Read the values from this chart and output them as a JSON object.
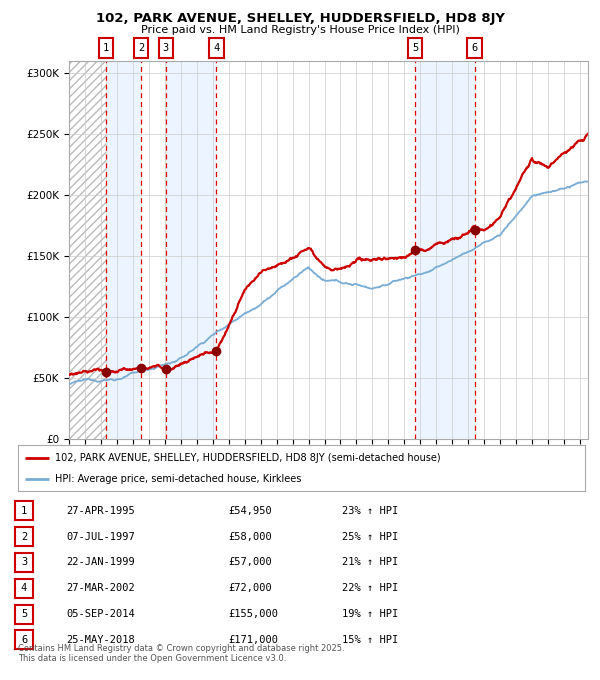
{
  "title": "102, PARK AVENUE, SHELLEY, HUDDERSFIELD, HD8 8JY",
  "subtitle": "Price paid vs. HM Land Registry's House Price Index (HPI)",
  "sales": [
    {
      "num": 1,
      "date_str": "27-APR-1995",
      "year": 1995.32,
      "price": 54950,
      "pct": "23%",
      "dir": "↑"
    },
    {
      "num": 2,
      "date_str": "07-JUL-1997",
      "year": 1997.52,
      "price": 58000,
      "pct": "25%",
      "dir": "↑"
    },
    {
      "num": 3,
      "date_str": "22-JAN-1999",
      "year": 1999.06,
      "price": 57000,
      "pct": "21%",
      "dir": "↑"
    },
    {
      "num": 4,
      "date_str": "27-MAR-2002",
      "year": 2002.23,
      "price": 72000,
      "pct": "22%",
      "dir": "↑"
    },
    {
      "num": 5,
      "date_str": "05-SEP-2014",
      "year": 2014.68,
      "price": 155000,
      "pct": "19%",
      "dir": "↑"
    },
    {
      "num": 6,
      "date_str": "25-MAY-2018",
      "year": 2018.4,
      "price": 171000,
      "pct": "15%",
      "dir": "↑"
    }
  ],
  "legend_red": "102, PARK AVENUE, SHELLEY, HUDDERSFIELD, HD8 8JY (semi-detached house)",
  "legend_blue": "HPI: Average price, semi-detached house, Kirklees",
  "footer": "Contains HM Land Registry data © Crown copyright and database right 2025.\nThis data is licensed under the Open Government Licence v3.0.",
  "red_color": "#cc0000",
  "blue_color": "#7aadd6",
  "sale_marker_color": "#880000",
  "bg_color": "#ffffff",
  "grid_color": "#cccccc",
  "stripe_color": "#ddeeff",
  "ylim_max": 310000,
  "xlim_start": 1993.0,
  "xlim_end": 2025.5
}
